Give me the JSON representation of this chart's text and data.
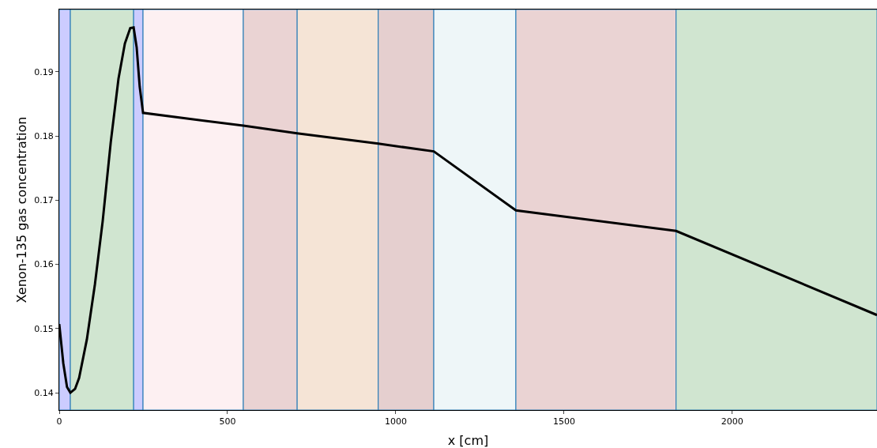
{
  "chart_data": {
    "type": "line",
    "xlabel": "x [cm]",
    "ylabel": "Xenon-135 gas concentration",
    "xlim": [
      0,
      2430
    ],
    "ylim": [
      0.1373,
      0.1997
    ],
    "xticks": [
      0,
      500,
      1000,
      1500,
      2000
    ],
    "yticks": [
      0.14,
      0.15,
      0.16,
      0.17,
      0.18,
      0.19
    ],
    "grid": false,
    "series": [
      {
        "color": "#000000",
        "x": [
          0,
          12,
          23,
          33,
          47,
          59,
          82,
          106,
          129,
          153,
          176,
          195,
          211,
          221,
          230,
          239,
          249,
          547,
          707,
          948,
          1113,
          1357,
          1833,
          2430
        ],
        "values": [
          0.1507,
          0.1446,
          0.1409,
          0.14,
          0.1406,
          0.1423,
          0.1483,
          0.1569,
          0.1667,
          0.179,
          0.1889,
          0.1944,
          0.1968,
          0.1969,
          0.1938,
          0.1877,
          0.1836,
          0.1816,
          0.1804,
          0.1788,
          0.1776,
          0.1684,
          0.1652,
          0.1521
        ]
      }
    ],
    "bands": [
      {
        "axis": "x",
        "from": 0,
        "to": 33,
        "color": "#ccccff"
      },
      {
        "axis": "x",
        "from": 33,
        "to": 221,
        "color": "#d0e5d0"
      },
      {
        "axis": "x",
        "from": 221,
        "to": 249,
        "color": "#ccccff"
      },
      {
        "axis": "x",
        "from": 249,
        "to": 547,
        "color": "#fdf0f2"
      },
      {
        "axis": "x",
        "from": 547,
        "to": 707,
        "color": "#ead3d3"
      },
      {
        "axis": "x",
        "from": 707,
        "to": 948,
        "color": "#f5e4d6"
      },
      {
        "axis": "x",
        "from": 948,
        "to": 1113,
        "color": "#e5cfcf"
      },
      {
        "axis": "x",
        "from": 1113,
        "to": 1357,
        "color": "#eef6f8"
      },
      {
        "axis": "x",
        "from": 1357,
        "to": 1833,
        "color": "#ead3d3"
      },
      {
        "axis": "x",
        "from": 1833,
        "to": 2430,
        "color": "#d0e5d0"
      }
    ]
  }
}
